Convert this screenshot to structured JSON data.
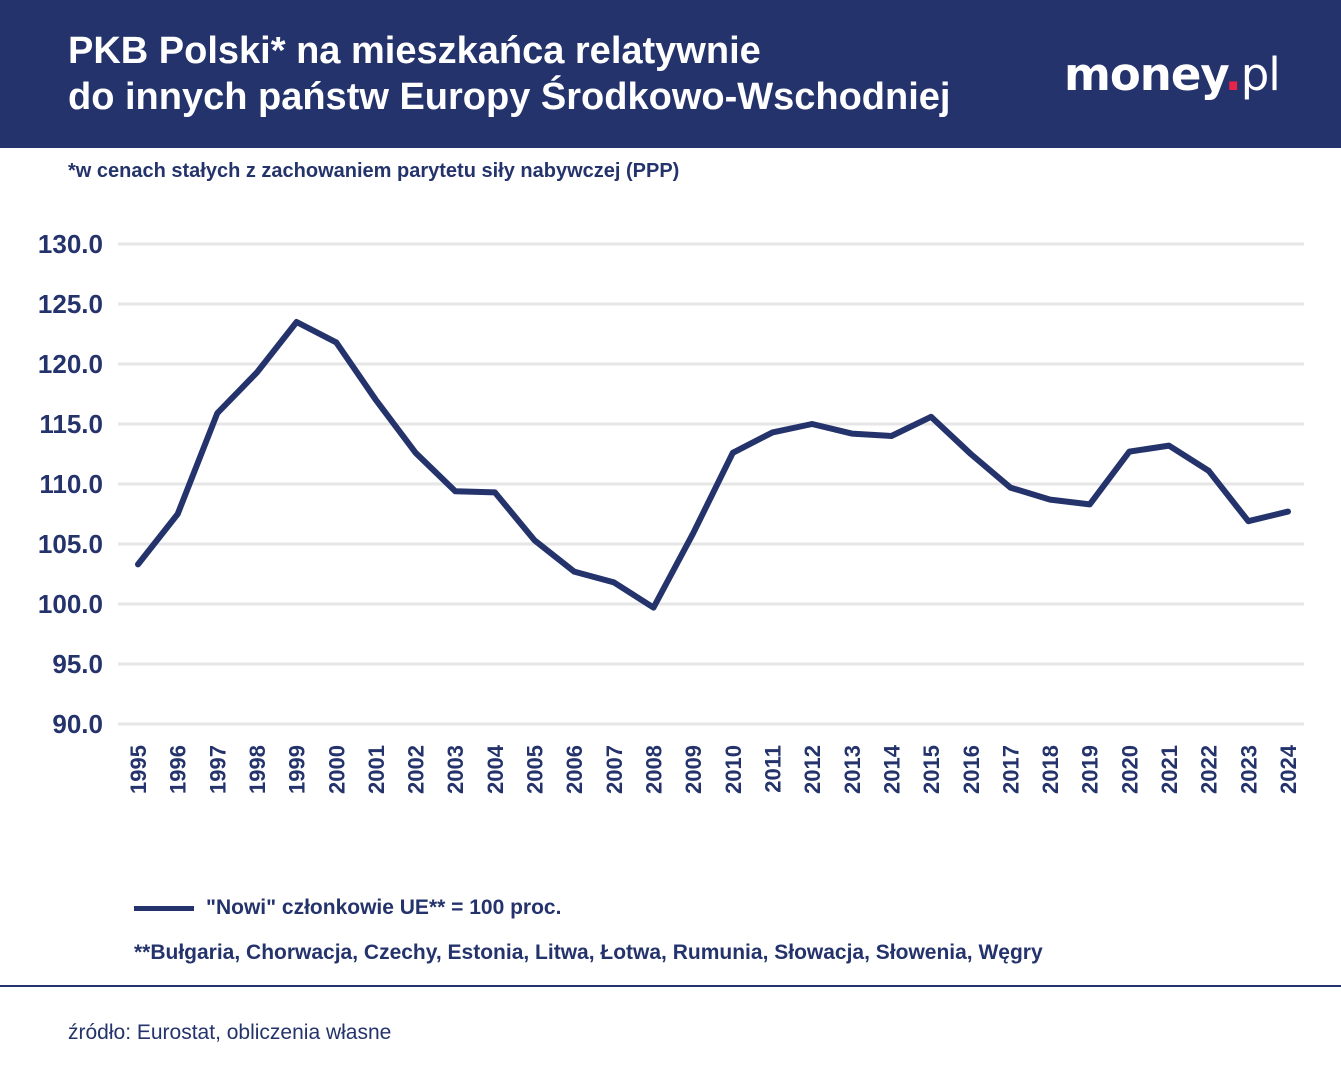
{
  "header": {
    "title_line1": "PKB Polski* na mieszkańca relatywnie",
    "title_line2": "do innych państw Europy Środkowo-Wschodniej",
    "logo_main": "money",
    "logo_dot": ".",
    "logo_suffix": "pl"
  },
  "subtitle": "*w cenach stałych z zachowaniem parytetu siły nabywczej (PPP)",
  "legend": {
    "label": "\"Nowi\" członkowie UE** = 100 proc."
  },
  "footnote": "**Bułgaria, Chorwacja, Czechy, Estonia, Litwa, Łotwa, Rumunia, Słowacja, Słowenia, Węgry",
  "source": "źródło: Eurostat, obliczenia własne",
  "colors": {
    "header_bg": "#24336b",
    "line": "#24336b",
    "grid": "#e6e6e6",
    "logo_dot": "#e8234a"
  },
  "chart_data": {
    "type": "line",
    "x": [
      "1995",
      "1996",
      "1997",
      "1998",
      "1999",
      "2000",
      "2001",
      "2002",
      "2003",
      "2004",
      "2005",
      "2006",
      "2007",
      "2008",
      "2009",
      "2010",
      "2011",
      "2012",
      "2013",
      "2014",
      "2015",
      "2016",
      "2017",
      "2018",
      "2019",
      "2020",
      "2021",
      "2022",
      "2023",
      "2024"
    ],
    "series": [
      {
        "name": "\"Nowi\" członkowie UE** = 100 proc.",
        "values": [
          103.3,
          107.5,
          115.9,
          119.3,
          123.5,
          121.8,
          117.0,
          112.6,
          109.4,
          109.3,
          105.3,
          102.7,
          101.8,
          99.7,
          105.9,
          112.6,
          114.3,
          115.0,
          114.2,
          114.0,
          115.6,
          112.5,
          109.7,
          108.7,
          108.3,
          112.7,
          113.2,
          111.1,
          106.9,
          107.7
        ]
      }
    ],
    "y_ticks": [
      "130.0",
      "125.0",
      "120.0",
      "115.0",
      "110.0",
      "105.0",
      "100.0",
      "95.0",
      "90.0"
    ],
    "ylim": [
      90,
      130
    ],
    "grid": true,
    "legend_position": "bottom-left"
  }
}
